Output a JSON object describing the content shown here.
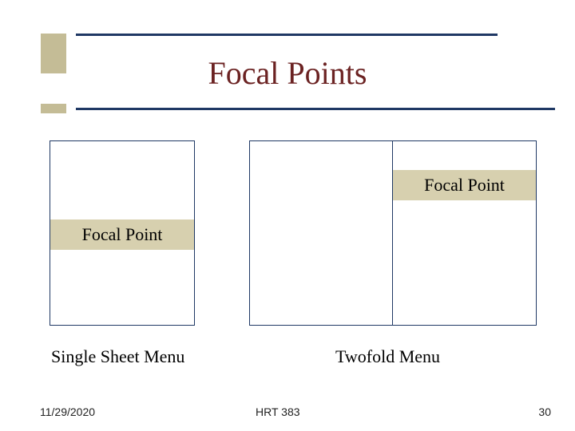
{
  "title": "Focal Points",
  "diagrams": {
    "single": {
      "label": "Focal Point",
      "caption": "Single Sheet Menu",
      "band_bg": "#d7d0af",
      "border_color": "#1f3864"
    },
    "twofold": {
      "label": "Focal Point",
      "caption": "Twofold Menu",
      "band_bg": "#d7d0af",
      "border_color": "#1f3864"
    }
  },
  "accent_color": "#c4bc96",
  "rule_color": "#1f3864",
  "title_color": "#6b2222",
  "footer": {
    "date": "11/29/2020",
    "course": "HRT 383",
    "page": "30"
  }
}
